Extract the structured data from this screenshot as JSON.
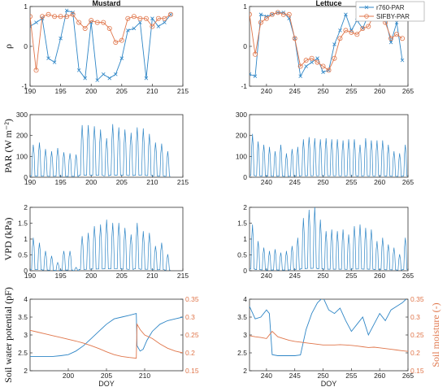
{
  "colors": {
    "blue": "#2f86c6",
    "orange": "#e0764b",
    "axis": "#333333"
  },
  "legend": {
    "series1": "r760-PAR",
    "series2": "SIFBY-PAR"
  },
  "chart_data": [
    {
      "type": "line",
      "title": "Mustard",
      "ylabel": "ρ",
      "xlabel": "",
      "xlim": [
        190,
        215
      ],
      "ylim": [
        -1,
        1
      ],
      "xticks": [
        "190",
        "195",
        "200",
        "205",
        "210",
        "215"
      ],
      "yticks": [
        "-1",
        "0",
        "1"
      ],
      "series": [
        {
          "name": "r760-PAR",
          "marker": "x",
          "x": [
            190,
            191,
            192,
            193,
            194,
            195,
            196,
            197,
            198,
            199,
            200,
            201,
            202,
            203,
            204,
            205,
            206,
            207,
            208,
            209,
            210,
            211,
            212,
            213
          ],
          "y": [
            0.5,
            0.6,
            0.7,
            -0.3,
            -0.4,
            0.2,
            0.9,
            0.85,
            -0.6,
            -0.8,
            0.6,
            -0.85,
            -0.7,
            -0.8,
            -0.7,
            -0.3,
            0.4,
            0.45,
            0.6,
            -0.8,
            0.7,
            0.5,
            0.6,
            0.8
          ]
        },
        {
          "name": "SIFBY-PAR",
          "marker": "o",
          "x": [
            190,
            191,
            192,
            193,
            194,
            195,
            196,
            197,
            198,
            199,
            200,
            201,
            202,
            203,
            204,
            205,
            206,
            207,
            208,
            209,
            210,
            211,
            212,
            213
          ],
          "y": [
            0.75,
            -0.6,
            0.75,
            0.8,
            0.75,
            0.75,
            0.75,
            0.8,
            0.6,
            0.45,
            0.65,
            0.6,
            0.6,
            0.45,
            0.1,
            0.15,
            0.7,
            0.75,
            0.7,
            0.7,
            0.5,
            0.7,
            0.7,
            0.8
          ]
        }
      ]
    },
    {
      "type": "line",
      "title": "Lettuce",
      "ylabel": "",
      "xlabel": "",
      "xlim": [
        237,
        265
      ],
      "ylim": [
        -1,
        1
      ],
      "xticks": [
        "240",
        "245",
        "250",
        "255",
        "260",
        "265"
      ],
      "yticks": [
        "-1",
        "0",
        "1"
      ],
      "series": [
        {
          "name": "r760-PAR",
          "marker": "x",
          "x": [
            237,
            238,
            239,
            240,
            241,
            242,
            243,
            244,
            245,
            246,
            247,
            248,
            249,
            250,
            251,
            252,
            253,
            254,
            255,
            256,
            257,
            258,
            259,
            260,
            261,
            262,
            263,
            264
          ],
          "y": [
            -0.7,
            -0.75,
            0.8,
            0.75,
            0.8,
            0.85,
            0.85,
            0.7,
            0.2,
            -0.75,
            -0.5,
            -0.4,
            -0.3,
            -0.65,
            -0.6,
            0.05,
            0.4,
            0.8,
            0.4,
            0.65,
            0.45,
            0.8,
            0.8,
            0.8,
            0.7,
            0.1,
            0.6,
            -0.35
          ]
        },
        {
          "name": "SIFBY-PAR",
          "marker": "o",
          "x": [
            237,
            238,
            239,
            240,
            241,
            242,
            243,
            244,
            245,
            246,
            247,
            248,
            249,
            250,
            251,
            252,
            253,
            254,
            255,
            256,
            257,
            258,
            259,
            260,
            261,
            262,
            263,
            264
          ],
          "y": [
            0.8,
            -0.2,
            0.6,
            0.7,
            0.8,
            0.85,
            0.8,
            0.8,
            0.2,
            -0.5,
            -0.35,
            -0.3,
            -0.4,
            -0.5,
            -0.6,
            -0.3,
            0.2,
            0.4,
            0.35,
            0.3,
            0.45,
            0.5,
            0.8,
            0.8,
            0.6,
            0.2,
            0.3,
            0.2
          ]
        }
      ]
    },
    {
      "type": "line",
      "title": "",
      "ylabel": "PAR (W m⁻²)",
      "xlabel": "",
      "xlim": [
        190,
        215
      ],
      "ylim": [
        0,
        300
      ],
      "xticks": [
        "190",
        "195",
        "200",
        "205",
        "210",
        "215"
      ],
      "yticks": [
        "0",
        "100",
        "200",
        "300"
      ],
      "series": [
        {
          "name": "PAR",
          "diurnal": true,
          "day_start": [
            190,
            191,
            192,
            193,
            194,
            195,
            196,
            197,
            198,
            199,
            200,
            201,
            202,
            203,
            204,
            205,
            206,
            207,
            208,
            209,
            210,
            211,
            212
          ],
          "daily_peak": [
            150,
            160,
            130,
            120,
            135,
            115,
            110,
            105,
            240,
            240,
            235,
            220,
            180,
            245,
            230,
            220,
            205,
            230,
            225,
            200,
            160,
            155,
            120
          ]
        }
      ]
    },
    {
      "type": "line",
      "title": "",
      "ylabel": "",
      "xlabel": "",
      "xlim": [
        237,
        265
      ],
      "ylim": [
        0,
        300
      ],
      "xticks": [
        "240",
        "245",
        "250",
        "255",
        "260",
        "265"
      ],
      "yticks": [
        "0",
        "100",
        "200",
        "300"
      ],
      "series": [
        {
          "name": "PAR",
          "diurnal": true,
          "day_start": [
            237,
            238,
            239,
            240,
            241,
            242,
            243,
            244,
            245,
            246,
            247,
            248,
            249,
            250,
            251,
            252,
            253,
            254,
            255,
            256,
            257,
            258,
            259,
            260,
            261,
            262,
            263,
            264
          ],
          "daily_peak": [
            200,
            165,
            150,
            140,
            120,
            150,
            110,
            130,
            140,
            175,
            185,
            180,
            175,
            180,
            175,
            175,
            170,
            175,
            175,
            150,
            180,
            170,
            170,
            170,
            150,
            120,
            110,
            150
          ]
        }
      ]
    },
    {
      "type": "line",
      "title": "",
      "ylabel": "VPD (kPa)",
      "xlabel": "",
      "xlim": [
        190,
        215
      ],
      "ylim": [
        0,
        2
      ],
      "xticks": [
        "190",
        "195",
        "200",
        "205",
        "210",
        "215"
      ],
      "yticks": [
        "0",
        "0.5",
        "1",
        "1.5",
        "2"
      ],
      "series": [
        {
          "name": "VPD",
          "diurnal": true,
          "day_start": [
            190,
            191,
            192,
            193,
            194,
            195,
            196,
            197,
            198,
            199,
            200,
            201,
            202,
            203,
            204,
            205,
            206,
            207,
            208,
            209,
            210,
            211,
            212
          ],
          "daily_peak": [
            1.0,
            0.85,
            0.6,
            0.45,
            0.25,
            0.6,
            0.6,
            0.1,
            1.05,
            1.15,
            1.35,
            1.4,
            1.55,
            1.45,
            1.45,
            1.3,
            1.1,
            1.45,
            1.2,
            1.15,
            0.75,
            0.85,
            0.5
          ]
        }
      ]
    },
    {
      "type": "line",
      "title": "",
      "ylabel": "",
      "xlabel": "",
      "xlim": [
        237,
        265
      ],
      "ylim": [
        0,
        2
      ],
      "xticks": [
        "240",
        "245",
        "250",
        "255",
        "260",
        "265"
      ],
      "yticks": [
        "0",
        "0.5",
        "1",
        "1.5",
        "2"
      ],
      "series": [
        {
          "name": "VPD",
          "diurnal": true,
          "day_start": [
            237,
            238,
            239,
            240,
            241,
            242,
            243,
            244,
            245,
            246,
            247,
            248,
            249,
            250,
            251,
            252,
            253,
            254,
            255,
            256,
            257,
            258,
            259,
            260,
            261,
            262,
            263,
            264
          ],
          "daily_peak": [
            1.4,
            0.9,
            0.7,
            0.6,
            0.65,
            0.55,
            0.6,
            0.75,
            1.0,
            1.6,
            1.85,
            1.95,
            1.55,
            1.2,
            1.25,
            1.2,
            1.25,
            1.1,
            1.35,
            1.4,
            1.3,
            1.25,
            0.9,
            1.0,
            0.8,
            0.7,
            0.5,
            1.0
          ]
        }
      ]
    },
    {
      "type": "line",
      "title": "",
      "ylabel": "Soil water potential (pF)",
      "y2label": "",
      "xlabel": "DOY",
      "xlim": [
        195,
        215
      ],
      "ylim": [
        2,
        4
      ],
      "y2lim": [
        0.15,
        0.35
      ],
      "xticks": [
        "200",
        "205",
        "210"
      ],
      "yticks": [
        "2",
        "2.5",
        "3",
        "3.5",
        "4"
      ],
      "y2ticks": [
        "0.15",
        "0.2",
        "0.25",
        "0.3",
        "0.35"
      ],
      "series": [
        {
          "name": "Soil water potential",
          "axis": "left",
          "x": [
            195,
            196,
            197,
            198,
            199,
            200,
            201,
            202,
            203,
            204,
            205,
            206,
            207,
            208,
            208.9,
            209,
            209.4,
            209.8,
            210.3,
            211,
            212,
            213,
            214,
            215
          ],
          "y": [
            2.4,
            2.4,
            2.4,
            2.4,
            2.42,
            2.45,
            2.55,
            2.7,
            2.9,
            3.1,
            3.3,
            3.45,
            3.5,
            3.55,
            3.6,
            2.7,
            2.55,
            2.6,
            2.85,
            3.1,
            3.3,
            3.4,
            3.45,
            3.5
          ]
        },
        {
          "name": "Soil moisture",
          "axis": "right",
          "x": [
            195,
            196,
            197,
            198,
            199,
            200,
            201,
            202,
            203,
            204,
            205,
            206,
            207,
            208,
            208.9,
            209,
            209.4,
            210,
            211,
            212,
            213,
            214,
            215
          ],
          "y": [
            0.263,
            0.258,
            0.253,
            0.248,
            0.243,
            0.238,
            0.233,
            0.227,
            0.22,
            0.212,
            0.203,
            0.195,
            0.19,
            0.187,
            0.185,
            0.28,
            0.265,
            0.25,
            0.24,
            0.225,
            0.213,
            0.205,
            0.2
          ]
        }
      ]
    },
    {
      "type": "line",
      "title": "",
      "ylabel": "",
      "y2label": "Soil moisture (-)",
      "xlabel": "DOY",
      "xlim": [
        237,
        265
      ],
      "ylim": [
        2,
        4
      ],
      "y2lim": [
        0.15,
        0.35
      ],
      "xticks": [
        "240",
        "245",
        "250",
        "255",
        "260",
        "265"
      ],
      "yticks": [
        "2",
        "2.5",
        "3",
        "3.5",
        "4"
      ],
      "y2ticks": [
        "0.15",
        "0.2",
        "0.25",
        "0.3",
        "0.35"
      ],
      "series": [
        {
          "name": "Soil water potential",
          "axis": "left",
          "x": [
            237,
            238,
            239,
            240,
            240.5,
            241,
            242,
            243,
            244,
            245,
            246,
            247,
            248,
            249,
            250,
            251,
            252,
            253,
            254,
            255,
            256,
            257,
            258,
            259,
            260,
            261,
            262,
            263,
            264,
            265
          ],
          "y": [
            3.8,
            3.45,
            3.5,
            3.7,
            3.6,
            2.45,
            2.42,
            2.42,
            2.42,
            2.42,
            2.44,
            3.15,
            3.6,
            3.9,
            4.05,
            3.7,
            3.6,
            3.75,
            3.4,
            3.1,
            3.3,
            3.5,
            3.0,
            3.3,
            3.6,
            3.4,
            3.7,
            3.8,
            3.9,
            4.05
          ]
        },
        {
          "name": "Soil moisture",
          "axis": "right",
          "x": [
            237,
            238,
            239,
            240,
            241,
            242,
            243,
            244,
            245,
            246,
            247,
            248,
            249,
            250,
            251,
            252,
            253,
            254,
            255,
            256,
            257,
            258,
            259,
            260,
            261,
            262,
            263,
            264,
            265
          ],
          "y": [
            0.248,
            0.245,
            0.243,
            0.24,
            0.26,
            0.245,
            0.24,
            0.235,
            0.232,
            0.23,
            0.228,
            0.226,
            0.224,
            0.222,
            0.222,
            0.222,
            0.223,
            0.222,
            0.221,
            0.219,
            0.217,
            0.215,
            0.216,
            0.214,
            0.212,
            0.21,
            0.208,
            0.206,
            0.204
          ]
        }
      ]
    }
  ]
}
